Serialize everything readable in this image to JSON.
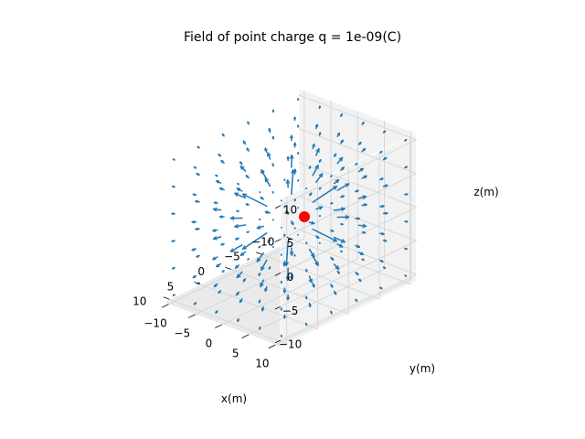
{
  "chart_data": {
    "type": "quiver3d",
    "title": "Field of point charge q = 1e-09(C)",
    "xlabel": "x(m)",
    "ylabel": "y(m)",
    "zlabel": "z(m)",
    "xlim": [
      -11,
      11
    ],
    "ylim": [
      -11,
      11
    ],
    "zlim": [
      -11,
      11
    ],
    "xticks": [
      "−10",
      "−5",
      "0",
      "5",
      "10"
    ],
    "yticks": [
      "−10",
      "−5",
      "0",
      "5",
      "10"
    ],
    "zticks": [
      "−10",
      "−5",
      "0",
      "5",
      "10"
    ],
    "grid": true,
    "charge": {
      "x": 0,
      "y": 0,
      "z": 0,
      "q": 1e-09,
      "color": "#ff0000"
    },
    "field": {
      "grid_min": -10,
      "grid_max": 10,
      "grid_step": 4,
      "color": "#1f77b4"
    },
    "colors": {
      "pane": "#f2f2f2",
      "grid": "#d2d2d2",
      "arrow": "#1f77b4",
      "charge": "#ff0000"
    }
  }
}
